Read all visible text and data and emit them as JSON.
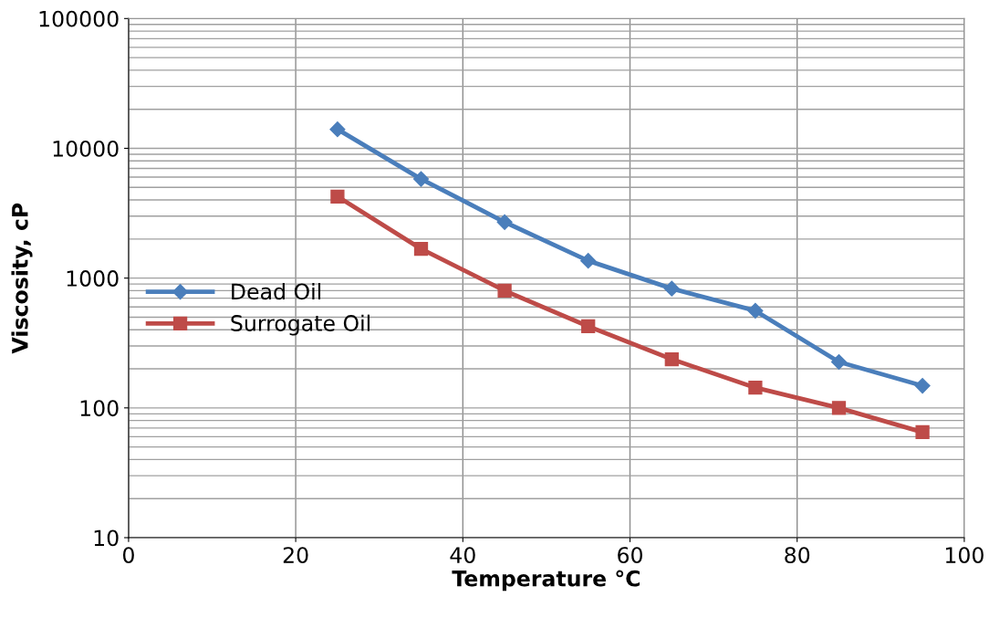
{
  "chart_data": {
    "type": "line",
    "xlabel": "Temperature °C",
    "ylabel": "Viscosity, cP",
    "log": "y",
    "grid": true,
    "legend": "left",
    "line_style": "solid",
    "x": [
      25,
      35,
      45,
      55,
      65,
      75,
      85,
      95
    ],
    "xlim": [
      0,
      100
    ],
    "xticks": [
      0,
      20,
      40,
      60,
      80,
      100
    ],
    "ylim": [
      10,
      100000
    ],
    "yticks": [
      10,
      100,
      1000,
      10000,
      100000
    ],
    "series": [
      {
        "name": "Dead Oil",
        "color": "#4a7ebb",
        "marker": "diamond",
        "values": [
          14000,
          5800,
          2700,
          1360,
          830,
          560,
          226,
          148
        ]
      },
      {
        "name": "Surrogate Oil",
        "color": "#be4b48",
        "marker": "square",
        "values": [
          4250,
          1680,
          800,
          425,
          237,
          143,
          100,
          65
        ]
      }
    ]
  }
}
